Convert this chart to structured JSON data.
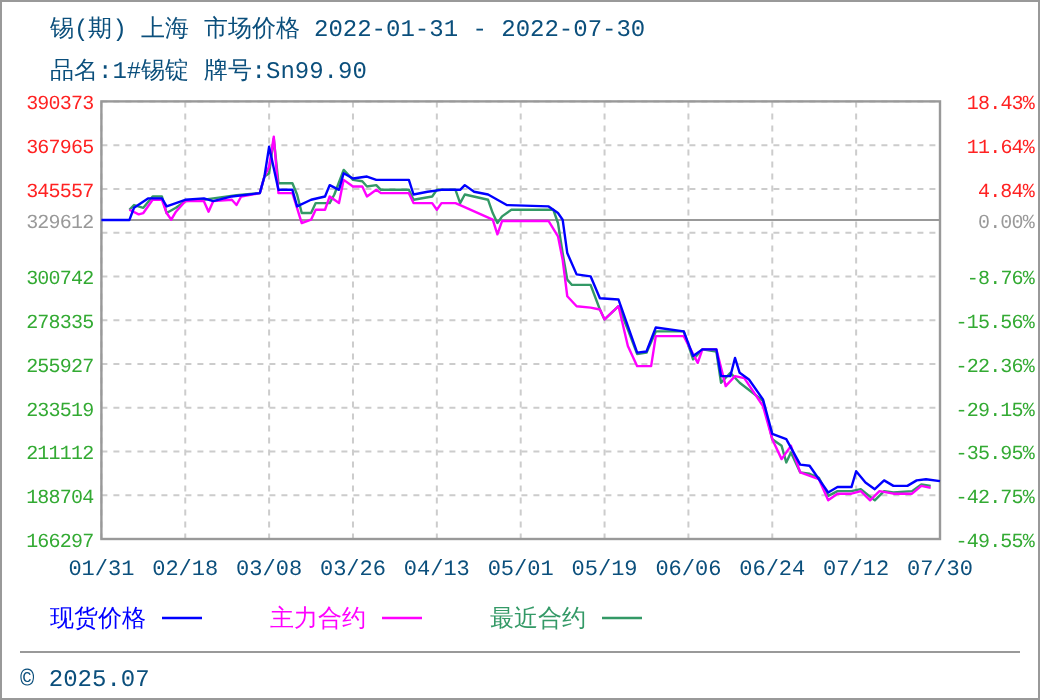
{
  "chart_data": {
    "type": "line",
    "title": "锡(期) 上海 市场价格 2022-01-31 - 2022-07-30",
    "subtitle": "品名:1#锡锭 牌号:Sn99.90",
    "annotations": [
      "© 2025.07"
    ],
    "xlim": [
      "2022-01-31",
      "2022-07-30"
    ],
    "xticks": [
      {
        "value": "2022-01-31",
        "label": "01/31"
      },
      {
        "value": "2022-02-18",
        "label": "02/18"
      },
      {
        "value": "2022-03-08",
        "label": "03/08"
      },
      {
        "value": "2022-03-26",
        "label": "03/26"
      },
      {
        "value": "2022-04-13",
        "label": "04/13"
      },
      {
        "value": "2022-05-01",
        "label": "05/01"
      },
      {
        "value": "2022-05-19",
        "label": "05/19"
      },
      {
        "value": "2022-06-06",
        "label": "06/06"
      },
      {
        "value": "2022-06-24",
        "label": "06/24"
      },
      {
        "value": "2022-07-12",
        "label": "07/12"
      },
      {
        "value": "2022-07-30",
        "label": "07/30"
      }
    ],
    "ylim": [
      166297,
      390373
    ],
    "yticks": [
      390373,
      367965,
      345557,
      329612,
      {
        "value": 323149,
        "label": null
      },
      300742,
      278335,
      255927,
      233519,
      211112,
      188704,
      166297
    ],
    "y2lim": [
      -49.55,
      18.43
    ],
    "y2ticks": [
      {
        "value": 18.43,
        "label": "18.43%"
      },
      {
        "value": 11.64,
        "label": "11.64%"
      },
      {
        "value": 4.84,
        "label": "4.84%"
      },
      {
        "value": 0,
        "label": "0.00%"
      },
      {
        "value": -1.96,
        "label": null
      },
      {
        "value": -8.76,
        "label": "-8.76%"
      },
      {
        "value": -15.56,
        "label": "-15.56%"
      },
      {
        "value": -22.36,
        "label": "-22.36%"
      },
      {
        "value": -29.15,
        "label": "-29.15%"
      },
      {
        "value": -35.95,
        "label": "-35.95%"
      },
      {
        "value": -42.75,
        "label": "-42.75%"
      },
      {
        "value": -49.55,
        "label": "-49.55%"
      }
    ],
    "ref_lines": [
      {
        "axis": "y",
        "value": 329612,
        "color": "#999999",
        "line_style": "solid"
      }
    ],
    "grid": true,
    "legend": "bottom",
    "line_style": "solid",
    "series": [
      {
        "name": "现货价格",
        "color": "#0000ff",
        "x": [
          "2022-01-31",
          "2022-02-06",
          "2022-02-07",
          "2022-02-10",
          "2022-02-13",
          "2022-02-14",
          "2022-02-18",
          "2022-02-22",
          "2022-02-24",
          "2022-02-28",
          "2022-03-06",
          "2022-03-07",
          "2022-03-08",
          "2022-03-10",
          "2022-03-13",
          "2022-03-14",
          "2022-03-17",
          "2022-03-20",
          "2022-03-21",
          "2022-03-23",
          "2022-03-24",
          "2022-03-26",
          "2022-03-29",
          "2022-03-31",
          "2022-04-07",
          "2022-04-08",
          "2022-04-11",
          "2022-04-14",
          "2022-04-18",
          "2022-04-19",
          "2022-04-21",
          "2022-04-24",
          "2022-04-28",
          "2022-05-07",
          "2022-05-09",
          "2022-05-10",
          "2022-05-11",
          "2022-05-13",
          "2022-05-16",
          "2022-05-18",
          "2022-05-22",
          "2022-05-24",
          "2022-05-26",
          "2022-05-28",
          "2022-05-30",
          "2022-06-05",
          "2022-06-07",
          "2022-06-09",
          "2022-06-12",
          "2022-06-13",
          "2022-06-15",
          "2022-06-16",
          "2022-06-17",
          "2022-06-19",
          "2022-06-22",
          "2022-06-24",
          "2022-06-27",
          "2022-06-30",
          "2022-07-02",
          "2022-07-06",
          "2022-07-08",
          "2022-07-11",
          "2022-07-12",
          "2022-07-14",
          "2022-07-16",
          "2022-07-18",
          "2022-07-20",
          "2022-07-23",
          "2022-07-25",
          "2022-07-27",
          "2022-07-30"
        ],
        "values": [
          329612,
          329612,
          335900,
          340700,
          340700,
          336600,
          340000,
          340700,
          339300,
          341700,
          343400,
          351900,
          367200,
          345100,
          345100,
          336600,
          340000,
          341700,
          347500,
          345100,
          353600,
          350900,
          351900,
          350200,
          350200,
          342700,
          344100,
          345100,
          345100,
          347500,
          344100,
          342700,
          337300,
          336600,
          333200,
          329800,
          312700,
          301800,
          300800,
          289600,
          288900,
          275300,
          261700,
          262300,
          274600,
          272600,
          260000,
          263400,
          263400,
          249700,
          249700,
          259000,
          251400,
          248000,
          237800,
          220100,
          217400,
          204400,
          203800,
          190100,
          192900,
          192900,
          201000,
          195200,
          191800,
          196300,
          193500,
          193500,
          196300,
          196900,
          195900
        ]
      },
      {
        "name": "主力合约",
        "color": "#ff00ff",
        "x": [
          "2022-02-06",
          "2022-02-08",
          "2022-02-09",
          "2022-02-11",
          "2022-02-13",
          "2022-02-14",
          "2022-02-15",
          "2022-02-16",
          "2022-02-18",
          "2022-02-22",
          "2022-02-23",
          "2022-02-24",
          "2022-02-28",
          "2022-03-01",
          "2022-03-02",
          "2022-03-06",
          "2022-03-07",
          "2022-03-08",
          "2022-03-09",
          "2022-03-10",
          "2022-03-13",
          "2022-03-15",
          "2022-03-17",
          "2022-03-18",
          "2022-03-20",
          "2022-03-21",
          "2022-03-23",
          "2022-03-24",
          "2022-03-26",
          "2022-03-28",
          "2022-03-29",
          "2022-03-31",
          "2022-04-01",
          "2022-04-07",
          "2022-04-08",
          "2022-04-12",
          "2022-04-13",
          "2022-04-14",
          "2022-04-17",
          "2022-04-18",
          "2022-04-25",
          "2022-04-26",
          "2022-04-27",
          "2022-05-07",
          "2022-05-09",
          "2022-05-10",
          "2022-05-11",
          "2022-05-13",
          "2022-05-16",
          "2022-05-18",
          "2022-05-19",
          "2022-05-22",
          "2022-05-24",
          "2022-05-26",
          "2022-05-29",
          "2022-05-30",
          "2022-06-05",
          "2022-06-08",
          "2022-06-09",
          "2022-06-12",
          "2022-06-14",
          "2022-06-16",
          "2022-06-18",
          "2022-06-22",
          "2022-06-24",
          "2022-06-26",
          "2022-06-28",
          "2022-06-30",
          "2022-07-04",
          "2022-07-06",
          "2022-07-08",
          "2022-07-11",
          "2022-07-13",
          "2022-07-15",
          "2022-07-17",
          "2022-07-20",
          "2022-07-24",
          "2022-07-26",
          "2022-07-28"
        ],
        "values": [
          334900,
          332500,
          333200,
          340000,
          340000,
          333200,
          329800,
          333900,
          339300,
          339300,
          333900,
          339300,
          340000,
          337300,
          341700,
          343400,
          351900,
          357000,
          372300,
          343400,
          343400,
          328100,
          329800,
          334900,
          334900,
          341700,
          338300,
          350200,
          346800,
          346800,
          341700,
          345100,
          343400,
          343400,
          338300,
          338300,
          334900,
          338300,
          338300,
          337300,
          329800,
          322300,
          329100,
          329100,
          321300,
          309300,
          290600,
          285500,
          284800,
          283800,
          278700,
          285500,
          265100,
          254800,
          254800,
          270200,
          270200,
          256500,
          263400,
          263400,
          244600,
          249700,
          248700,
          234400,
          217400,
          207200,
          214000,
          200400,
          197000,
          186100,
          189500,
          189500,
          190800,
          186100,
          190800,
          189500,
          189500,
          193500,
          192500
        ]
      },
      {
        "name": "最近合约",
        "color": "#339966",
        "x": [
          "2022-02-06",
          "2022-02-07",
          "2022-02-09",
          "2022-02-11",
          "2022-02-13",
          "2022-02-14",
          "2022-02-16",
          "2022-02-18",
          "2022-02-22",
          "2022-02-24",
          "2022-03-01",
          "2022-03-06",
          "2022-03-07",
          "2022-03-08",
          "2022-03-09",
          "2022-03-10",
          "2022-03-13",
          "2022-03-14",
          "2022-03-15",
          "2022-03-17",
          "2022-03-18",
          "2022-03-21",
          "2022-03-22",
          "2022-03-24",
          "2022-03-26",
          "2022-03-28",
          "2022-03-29",
          "2022-03-31",
          "2022-04-01",
          "2022-04-07",
          "2022-04-08",
          "2022-04-12",
          "2022-04-13",
          "2022-04-17",
          "2022-04-18",
          "2022-04-19",
          "2022-04-24",
          "2022-04-25",
          "2022-04-26",
          "2022-04-27",
          "2022-04-29",
          "2022-05-08",
          "2022-05-09",
          "2022-05-10",
          "2022-05-11",
          "2022-05-12",
          "2022-05-16",
          "2022-05-18",
          "2022-05-19",
          "2022-05-22",
          "2022-05-24",
          "2022-05-26",
          "2022-05-28",
          "2022-05-30",
          "2022-06-05",
          "2022-06-07",
          "2022-06-09",
          "2022-06-12",
          "2022-06-13",
          "2022-06-15",
          "2022-06-17",
          "2022-06-22",
          "2022-06-24",
          "2022-06-26",
          "2022-06-27",
          "2022-06-28",
          "2022-06-30",
          "2022-07-02",
          "2022-07-04",
          "2022-07-06",
          "2022-07-08",
          "2022-07-11",
          "2022-07-13",
          "2022-07-16",
          "2022-07-18",
          "2022-07-20",
          "2022-07-24",
          "2022-07-26",
          "2022-07-28"
        ],
        "values": [
          334900,
          337300,
          335900,
          341700,
          341700,
          333200,
          335900,
          339300,
          340000,
          340700,
          342400,
          343400,
          351900,
          353600,
          371300,
          348500,
          348500,
          342700,
          333200,
          333200,
          338300,
          338300,
          342700,
          355300,
          350200,
          349500,
          346800,
          347500,
          345100,
          345100,
          340000,
          341700,
          345100,
          345100,
          338300,
          342700,
          340000,
          333200,
          328100,
          331500,
          334900,
          334900,
          328100,
          312700,
          299100,
          296400,
          296400,
          283800,
          278700,
          285500,
          273600,
          261000,
          261700,
          272600,
          272600,
          258300,
          263400,
          262300,
          246300,
          251400,
          246300,
          237100,
          217400,
          214000,
          205500,
          210600,
          200400,
          199700,
          197600,
          188400,
          190800,
          190800,
          191800,
          186100,
          190800,
          190100,
          190800,
          194200,
          193500
        ]
      }
    ]
  }
}
